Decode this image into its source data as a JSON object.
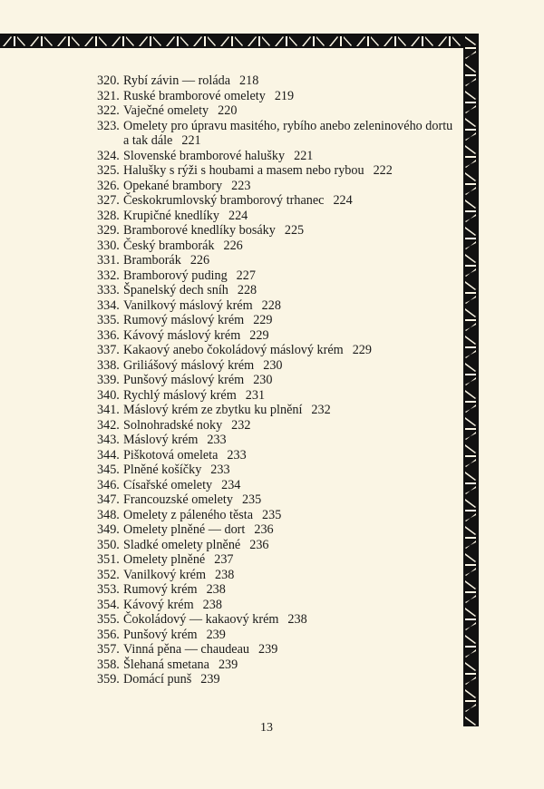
{
  "entries": [
    {
      "num": "320.",
      "title": "Rybí závin — roláda",
      "page": "218"
    },
    {
      "num": "321.",
      "title": "Ruské bramborové omelety",
      "page": "219"
    },
    {
      "num": "322.",
      "title": "Vaječné omelety",
      "page": "220"
    },
    {
      "num": "323.",
      "title": "Omelety pro úpravu masitého, rybího anebo zeleninového dortu a tak dále",
      "page": "221"
    },
    {
      "num": "324.",
      "title": "Slovenské bramborové halušky",
      "page": "221"
    },
    {
      "num": "325.",
      "title": "Halušky s rýži s houbami a masem nebo rybou",
      "page": "222"
    },
    {
      "num": "326.",
      "title": "Opekané brambory",
      "page": "223"
    },
    {
      "num": "327.",
      "title": "Českokrumlovský bramborový trhanec",
      "page": "224"
    },
    {
      "num": "328.",
      "title": "Krupičné knedlíky",
      "page": "224"
    },
    {
      "num": "329.",
      "title": "Bramborové knedlíky bosáky",
      "page": "225"
    },
    {
      "num": "330.",
      "title": "Český bramborák",
      "page": "226"
    },
    {
      "num": "331.",
      "title": "Bramborák",
      "page": "226"
    },
    {
      "num": "332.",
      "title": "Bramborový puding",
      "page": "227"
    },
    {
      "num": "333.",
      "title": "Španelský dech sníh",
      "page": "228"
    },
    {
      "num": "334.",
      "title": "Vanilkový máslový krém",
      "page": "228"
    },
    {
      "num": "335.",
      "title": "Rumový máslový krém",
      "page": "229"
    },
    {
      "num": "336.",
      "title": "Kávový máslový krém",
      "page": "229"
    },
    {
      "num": "337.",
      "title": "Kakaový anebo čokoládový máslový krém",
      "page": "229"
    },
    {
      "num": "338.",
      "title": "Griliášový máslový krém",
      "page": "230"
    },
    {
      "num": "339.",
      "title": "Punšový máslový krém",
      "page": "230"
    },
    {
      "num": "340.",
      "title": "Rychlý máslový krém",
      "page": "231"
    },
    {
      "num": "341.",
      "title": "Máslový krém ze zbytku ku plnění",
      "page": "232"
    },
    {
      "num": "342.",
      "title": "Solnohradské noky",
      "page": "232"
    },
    {
      "num": "343.",
      "title": "Máslový krém",
      "page": "233"
    },
    {
      "num": "344.",
      "title": "Piškotová omeleta",
      "page": "233"
    },
    {
      "num": "345.",
      "title": "Plněné košíčky",
      "page": "233"
    },
    {
      "num": "346.",
      "title": "Císařské omelety",
      "page": "234"
    },
    {
      "num": "347.",
      "title": "Francouzské omelety",
      "page": "235"
    },
    {
      "num": "348.",
      "title": "Omelety z páleného těsta",
      "page": "235"
    },
    {
      "num": "349.",
      "title": "Omelety plněné — dort",
      "page": "236"
    },
    {
      "num": "350.",
      "title": "Sladké omelety plněné",
      "page": "236"
    },
    {
      "num": "351.",
      "title": "Omelety plněné",
      "page": "237"
    },
    {
      "num": "352.",
      "title": "Vanilkový krém",
      "page": "238"
    },
    {
      "num": "353.",
      "title": "Rumový krém",
      "page": "238"
    },
    {
      "num": "354.",
      "title": "Kávový krém",
      "page": "238"
    },
    {
      "num": "355.",
      "title": "Čokoládový — kakaový krém",
      "page": "238"
    },
    {
      "num": "356.",
      "title": "Punšový krém",
      "page": "239"
    },
    {
      "num": "357.",
      "title": "Vinná pěna — chaudeau",
      "page": "239"
    },
    {
      "num": "358.",
      "title": "Šlehaná smetana",
      "page": "239"
    },
    {
      "num": "359.",
      "title": "Domácí punš",
      "page": "239"
    }
  ],
  "page_number": "13",
  "colors": {
    "paper": "#faf5e4",
    "ink": "#1a1a1a"
  }
}
